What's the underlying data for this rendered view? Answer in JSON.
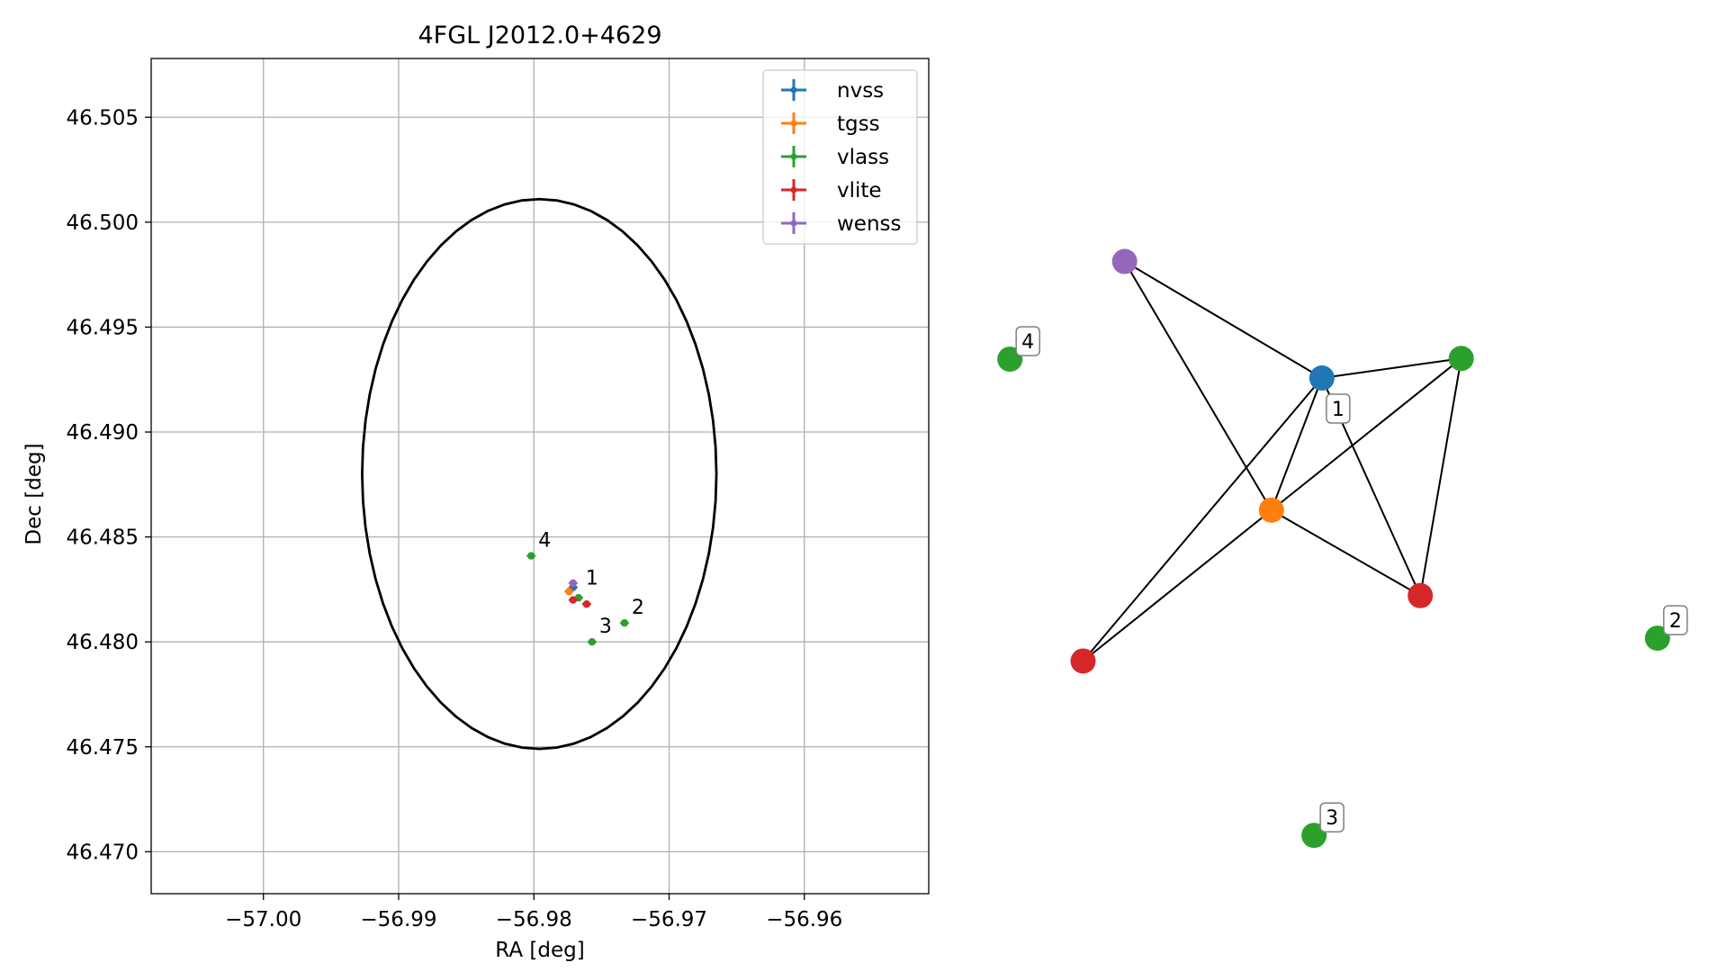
{
  "chart_data": [
    {
      "type": "scatter",
      "title": "4FGL J2012.0+4629",
      "xlabel": "RA [deg]",
      "ylabel": "Dec [deg]",
      "xlim": [
        -57.0083,
        -56.9508
      ],
      "ylim": [
        46.468,
        46.5078
      ],
      "xticks": [
        -57.0,
        -56.99,
        -56.98,
        -56.97,
        -56.96
      ],
      "xtick_labels": [
        "−57.00",
        "−56.99",
        "−56.98",
        "−56.97",
        "−56.96"
      ],
      "yticks": [
        46.47,
        46.475,
        46.48,
        46.485,
        46.49,
        46.495,
        46.5,
        46.505
      ],
      "ytick_labels": [
        "46.470",
        "46.475",
        "46.480",
        "46.485",
        "46.490",
        "46.495",
        "46.500",
        "46.505"
      ],
      "grid": true,
      "legend_position": "top-right",
      "error_circle": {
        "ra": -56.9796,
        "dec": 46.488,
        "radius": 0.0131
      },
      "series": [
        {
          "name": "nvss",
          "color": "#1f77b4",
          "points": [
            [
              -56.9771,
              46.4826
            ]
          ]
        },
        {
          "name": "tgss",
          "color": "#ff7f0e",
          "points": [
            [
              -56.9774,
              46.4824
            ]
          ]
        },
        {
          "name": "vlass",
          "color": "#2ca02c",
          "points": [
            [
              -56.9767,
              46.4821
            ],
            [
              -56.9733,
              46.4809
            ],
            [
              -56.9757,
              46.48
            ],
            [
              -56.9802,
              46.4841
            ]
          ]
        },
        {
          "name": "vlite",
          "color": "#d62728",
          "points": [
            [
              -56.9771,
              46.482
            ],
            [
              -56.9761,
              46.4818
            ]
          ]
        },
        {
          "name": "wenss",
          "color": "#9467bd",
          "points": [
            [
              -56.9771,
              46.4828
            ]
          ]
        }
      ],
      "labels": [
        {
          "text": "1",
          "ra": -56.9767,
          "dec": 46.4823
        },
        {
          "text": "2",
          "ra": -56.9733,
          "dec": 46.4809
        },
        {
          "text": "3",
          "ra": -56.9757,
          "dec": 46.48
        },
        {
          "text": "4",
          "ra": -56.9802,
          "dec": 46.4841
        }
      ]
    }
  ],
  "graph": {
    "nodes": [
      {
        "id": "n_purple",
        "color": "#9467bd",
        "fx": 0.1847,
        "fy": 0.1183
      },
      {
        "id": "n_blue",
        "color": "#1f77b4",
        "fx": 0.4809,
        "fy": 0.2933
      },
      {
        "id": "n_orange",
        "color": "#ff7f0e",
        "fx": 0.4051,
        "fy": 0.4917
      },
      {
        "id": "n_green_r",
        "color": "#2ca02c",
        "fx": 0.6901,
        "fy": 0.2639
      },
      {
        "id": "n_red_r",
        "color": "#d62728",
        "fx": 0.6286,
        "fy": 0.62
      },
      {
        "id": "n_red_l",
        "color": "#d62728",
        "fx": 0.1223,
        "fy": 0.7182
      },
      {
        "id": "n_4",
        "color": "#2ca02c",
        "fx": 0.0124,
        "fy": 0.265
      },
      {
        "id": "n_2",
        "color": "#2ca02c",
        "fx": 0.9848,
        "fy": 0.6839
      },
      {
        "id": "n_3",
        "color": "#2ca02c",
        "fx": 0.4691,
        "fy": 0.98
      }
    ],
    "edges": [
      [
        "n_purple",
        "n_blue"
      ],
      [
        "n_purple",
        "n_orange"
      ],
      [
        "n_blue",
        "n_orange"
      ],
      [
        "n_blue",
        "n_green_r"
      ],
      [
        "n_blue",
        "n_red_r"
      ],
      [
        "n_blue",
        "n_red_l"
      ],
      [
        "n_orange",
        "n_green_r"
      ],
      [
        "n_orange",
        "n_red_r"
      ],
      [
        "n_orange",
        "n_red_l"
      ],
      [
        "n_green_r",
        "n_red_r"
      ]
    ],
    "labels": [
      {
        "text": "1",
        "node": "n_blue",
        "dx": 18,
        "dy": 34
      },
      {
        "text": "2",
        "node": "n_2",
        "dx": 20,
        "dy": -20
      },
      {
        "text": "3",
        "node": "n_3",
        "dx": 20,
        "dy": -20
      },
      {
        "text": "4",
        "node": "n_4",
        "dx": 20,
        "dy": -20
      }
    ]
  }
}
